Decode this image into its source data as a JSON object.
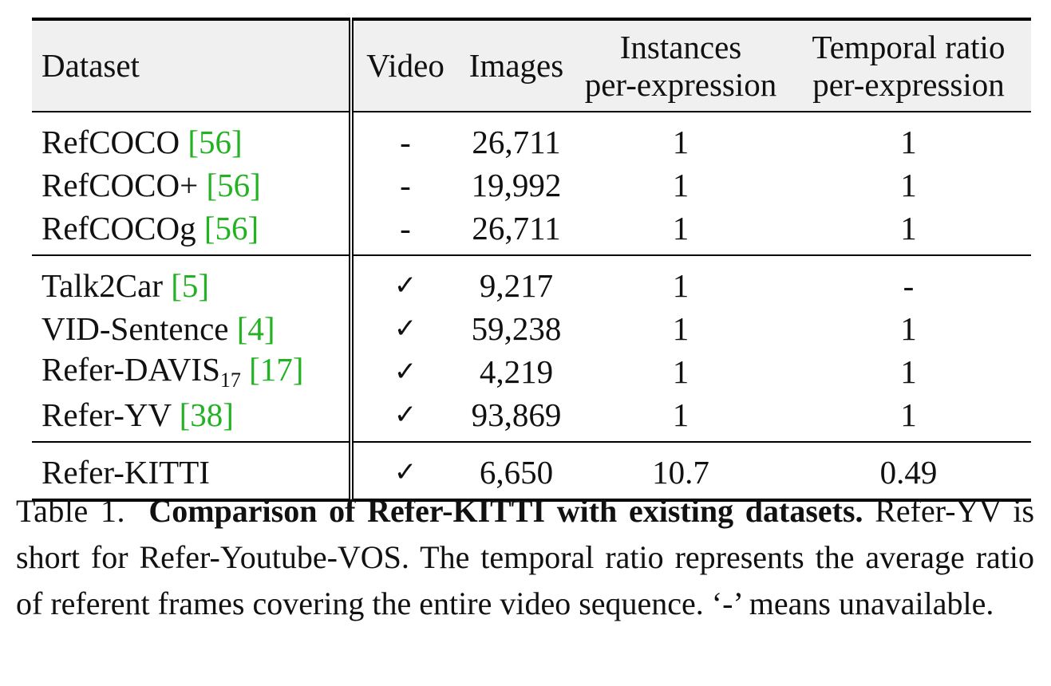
{
  "table": {
    "headers": {
      "dataset": "Dataset",
      "video": "Video",
      "images": "Images",
      "instances_line1": "Instances",
      "instances_line2": "per-expression",
      "temporal_line1": "Temporal ratio",
      "temporal_line2": "per-expression"
    },
    "rows": [
      {
        "name": "RefCOCO",
        "name_sub": "",
        "cite": "[56]",
        "video": "-",
        "images": "26,711",
        "instances": "1",
        "temporal": "1"
      },
      {
        "name": "RefCOCO+",
        "name_sub": "",
        "cite": "[56]",
        "video": "-",
        "images": "19,992",
        "instances": "1",
        "temporal": "1"
      },
      {
        "name": "RefCOCOg",
        "name_sub": "",
        "cite": "[56]",
        "video": "-",
        "images": "26,711",
        "instances": "1",
        "temporal": "1"
      },
      {
        "name": "Talk2Car",
        "name_sub": "",
        "cite": "[5]",
        "video": "✓",
        "images": "9,217",
        "instances": "1",
        "temporal": "-"
      },
      {
        "name": "VID-Sentence",
        "name_sub": "",
        "cite": "[4]",
        "video": "✓",
        "images": "59,238",
        "instances": "1",
        "temporal": "1"
      },
      {
        "name": "Refer-DAVIS",
        "name_sub": "17",
        "cite": "[17]",
        "video": "✓",
        "images": "4,219",
        "instances": "1",
        "temporal": "1"
      },
      {
        "name": "Refer-YV",
        "name_sub": "",
        "cite": "[38]",
        "video": "✓",
        "images": "93,869",
        "instances": "1",
        "temporal": "1"
      },
      {
        "name": "Refer-KITTI",
        "name_sub": "",
        "cite": "",
        "video": "✓",
        "images": "6,650",
        "instances": "10.7",
        "temporal": "0.49"
      }
    ]
  },
  "caption": {
    "label": "Table 1.",
    "title": "Comparison of Refer-KITTI with existing datasets.",
    "body": "Refer-YV is short for Refer-Youtube-VOS. The temporal ratio represents the average ratio of referent frames covering the entire video sequence. ‘-’ means unavailable."
  },
  "colors": {
    "citation": "#22b222",
    "header_background": "#f0f0f0"
  }
}
